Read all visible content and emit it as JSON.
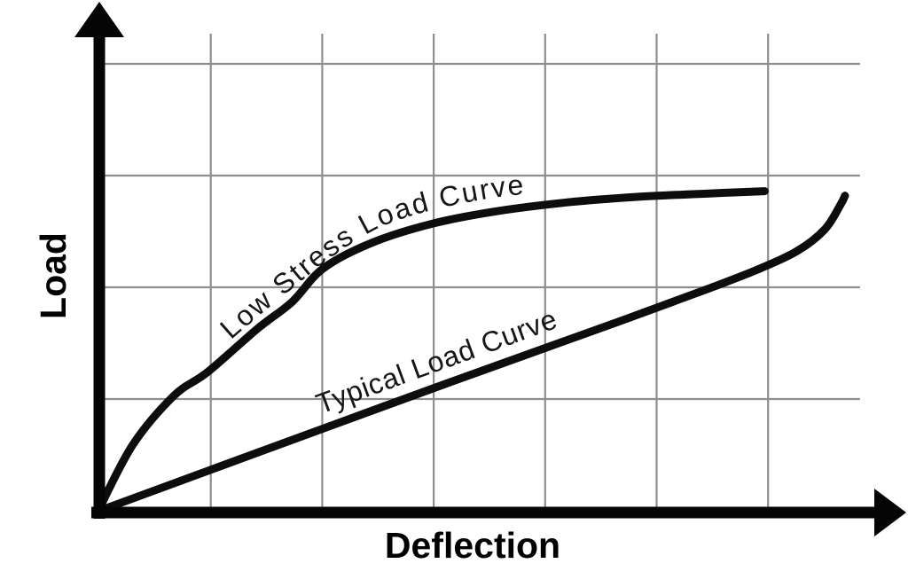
{
  "labels": {
    "y_axis": "Load",
    "x_axis": "Deflection"
  },
  "curve_labels": {
    "low_stress": "Low Stress Load Curve",
    "typical": "Typical Load Curve"
  },
  "colors": {
    "background": "#ffffff",
    "grid": "#8e8e8e",
    "curve": "#0d0d0d",
    "axis": "#050505",
    "text": "#000000"
  },
  "chart_data": {
    "type": "line",
    "title": "",
    "xlabel": "Deflection",
    "ylabel": "Load",
    "tick_labels": "none (qualitative sketch, one grid cell = 1 unit)",
    "grid": true,
    "legend": "labels drawn along each curve",
    "series": [
      {
        "name": "Low Stress Load Curve",
        "points": [
          [
            0,
            0.02
          ],
          [
            0.3,
            0.59
          ],
          [
            0.67,
            1.03
          ],
          [
            0.97,
            1.24
          ],
          [
            1.42,
            1.63
          ],
          [
            1.73,
            1.87
          ],
          [
            2.01,
            2.17
          ],
          [
            2.45,
            2.4
          ],
          [
            2.99,
            2.57
          ],
          [
            3.56,
            2.68
          ],
          [
            4.2,
            2.76
          ],
          [
            4.84,
            2.81
          ],
          [
            5.47,
            2.84
          ],
          [
            5.97,
            2.86
          ]
        ]
      },
      {
        "name": "Typical Load Curve",
        "points": [
          [
            0,
            0
          ],
          [
            1.5,
            0.55
          ],
          [
            3.09,
            1.13
          ],
          [
            4.68,
            1.7
          ],
          [
            5.47,
            1.99
          ],
          [
            5.91,
            2.16
          ],
          [
            6.27,
            2.33
          ],
          [
            6.51,
            2.52
          ],
          [
            6.65,
            2.74
          ],
          [
            6.69,
            2.82
          ]
        ]
      }
    ],
    "layout_hints": {
      "x_gridlines_units": [
        1,
        2,
        3,
        4,
        5,
        6
      ],
      "y_gridlines_units": [
        1,
        2,
        3,
        4
      ],
      "grid_right_units": 6.825,
      "grid_top_units": 4.27,
      "x_axis_arrow": "right",
      "y_axis_arrow": "up"
    }
  }
}
